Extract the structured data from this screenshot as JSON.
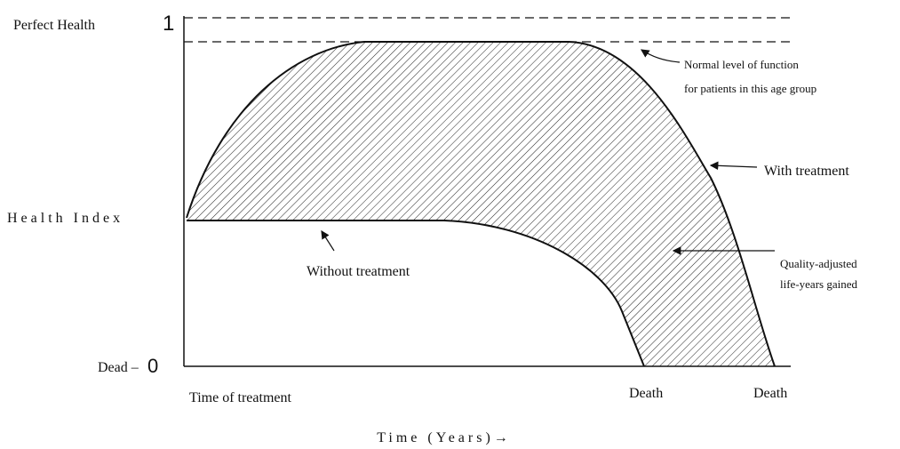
{
  "labels": {
    "perfect_health": "Perfect Health",
    "one": "1",
    "health_index": "Health Index",
    "dead": "Dead –",
    "zero": "0",
    "time_of_treatment": "Time of treatment",
    "death_without": "Death",
    "death_with": "Death",
    "time_axis": "Time (Years)→",
    "normal_level_1": "Normal level of function",
    "normal_level_2": "for patients in this age group",
    "with_treatment": "With treatment",
    "qaly_1": "Quality-adjusted",
    "qaly_2": "life-years gained",
    "without_treatment": "Without treatment"
  }
}
